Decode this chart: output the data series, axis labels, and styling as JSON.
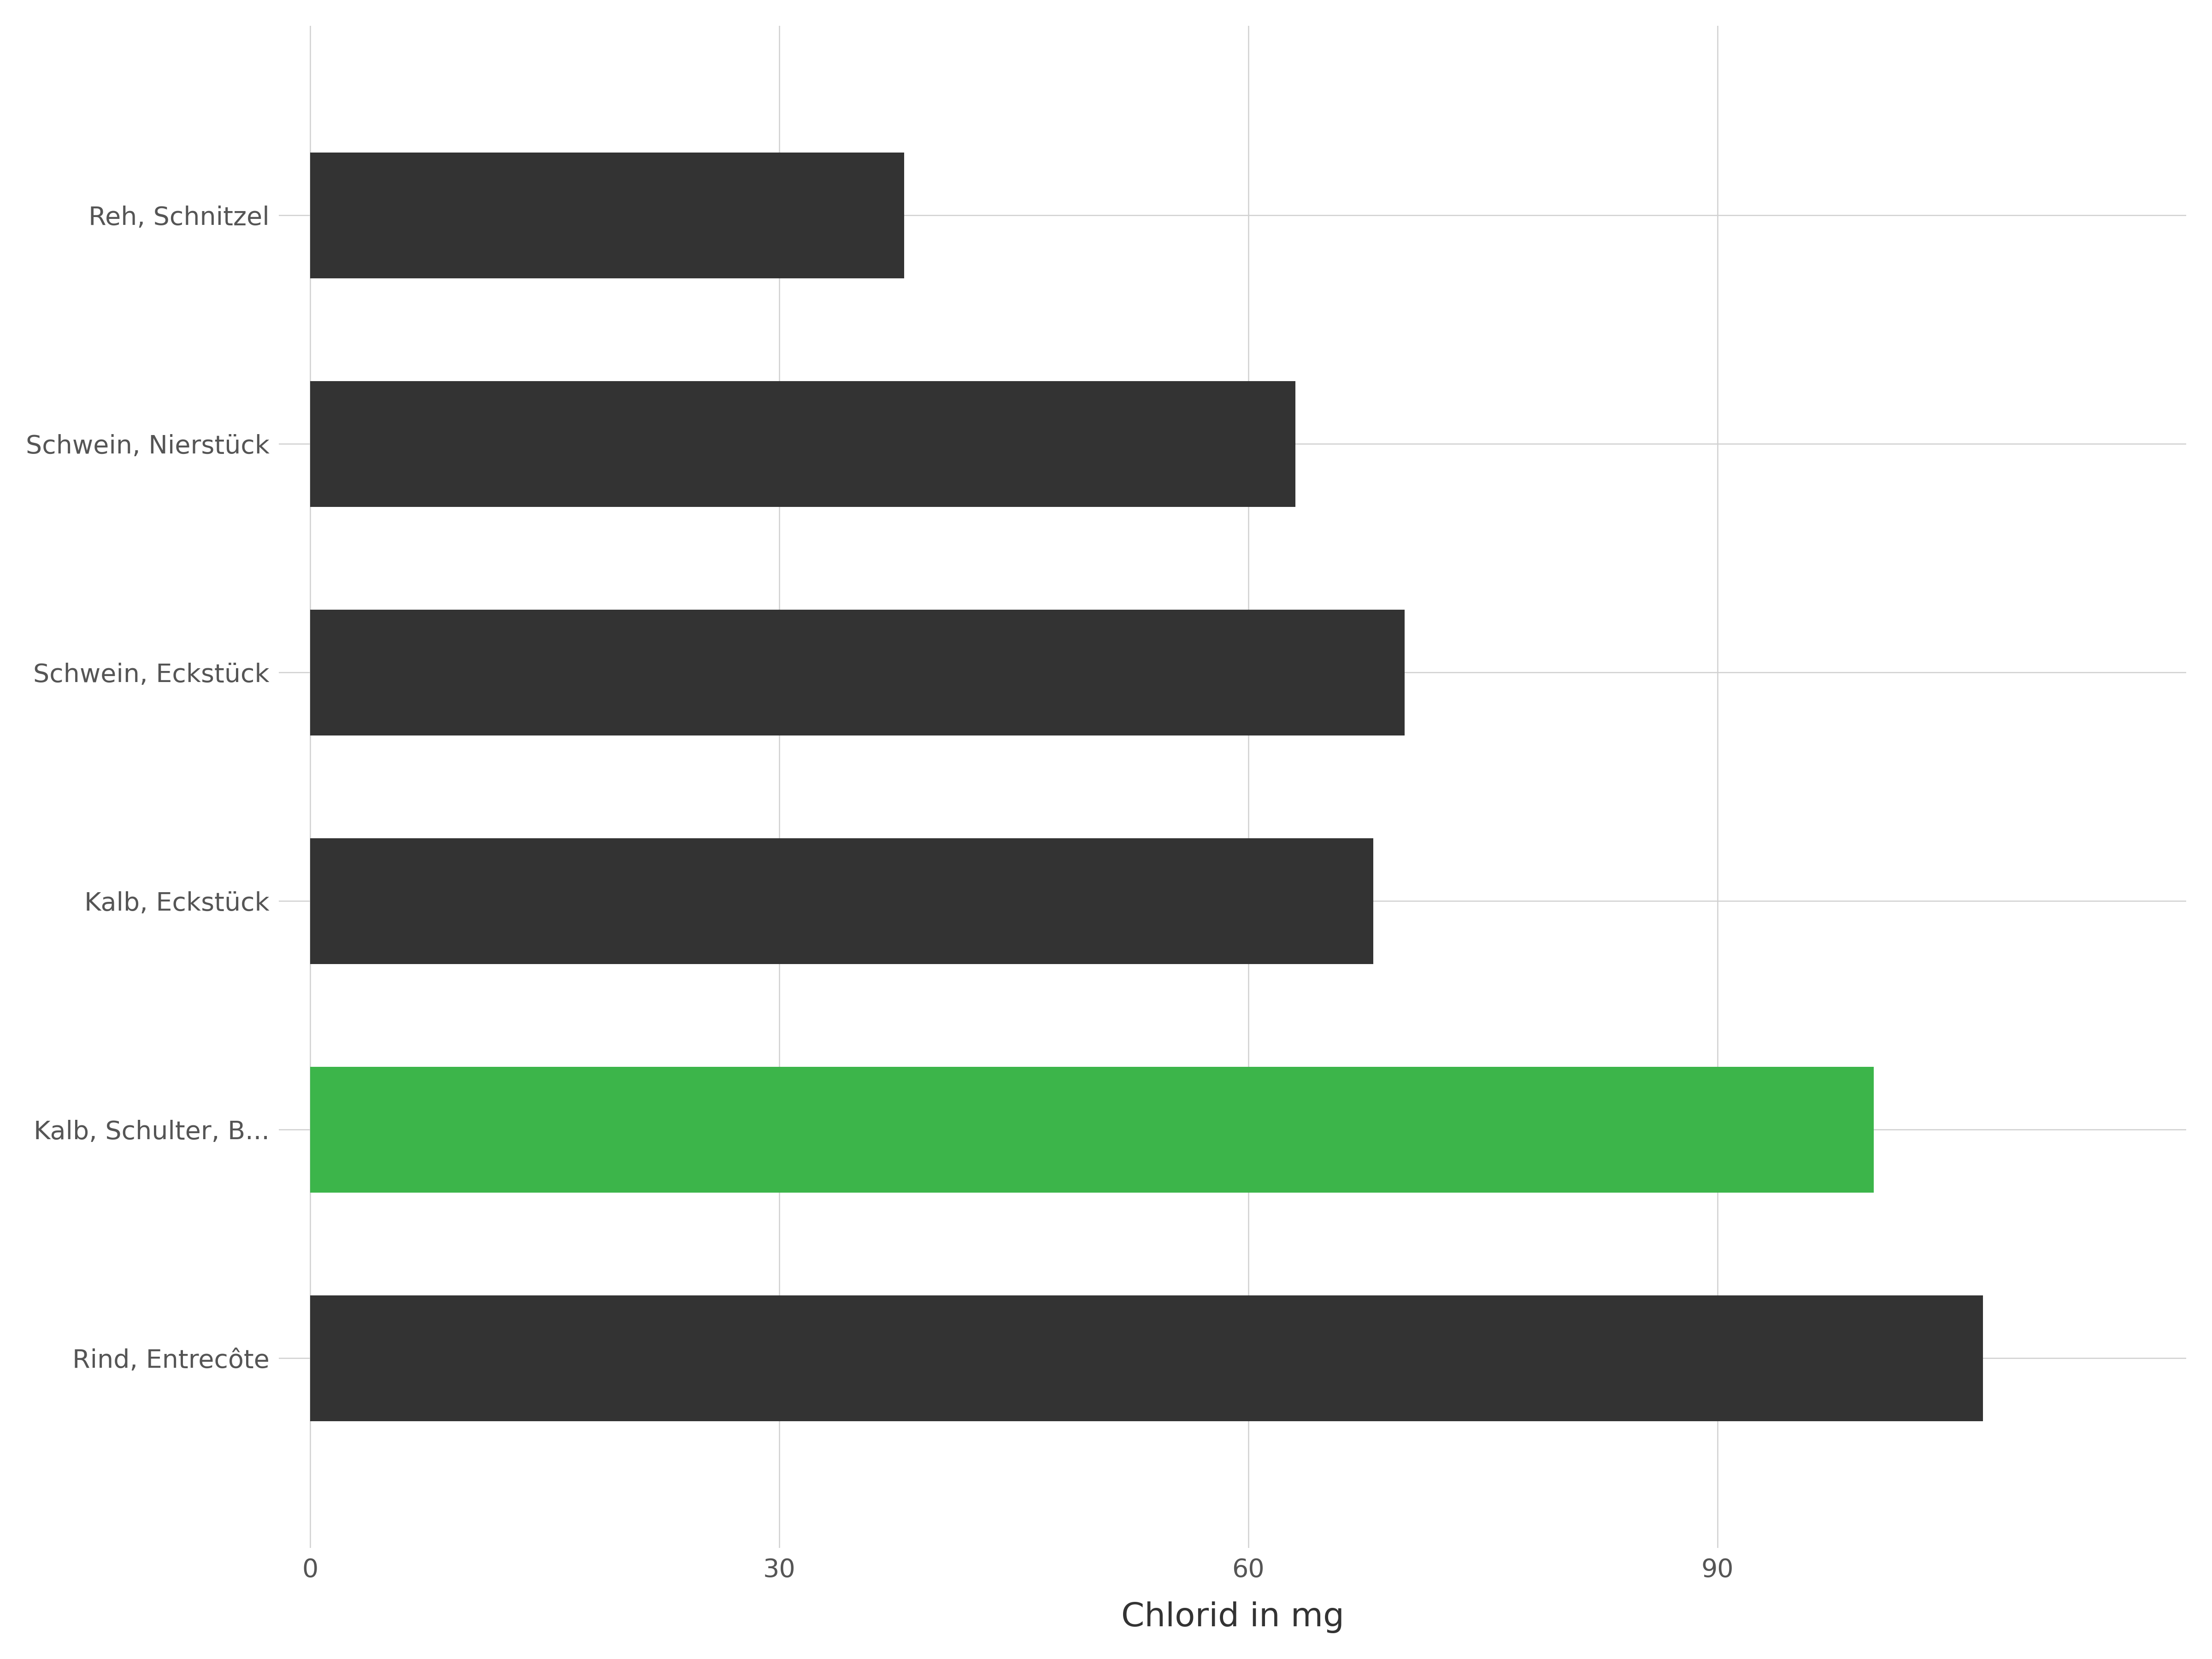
{
  "categories": [
    "Reh, Schnitzel",
    "Schwein, Nierstück",
    "Schwein, Eckstück",
    "Kalb, Eckstück",
    "Kalb, Schulter, B...",
    "Rind, Entrecôte"
  ],
  "values": [
    38,
    63,
    70,
    68,
    100,
    107
  ],
  "bar_colors": [
    "#333333",
    "#333333",
    "#333333",
    "#333333",
    "#3cb54a",
    "#333333"
  ],
  "xlabel": "Chlorid in mg",
  "xlim": [
    -2,
    120
  ],
  "xticks": [
    0,
    30,
    60,
    90
  ],
  "background_color": "#ffffff",
  "grid_color": "#d0d0d0",
  "label_color": "#555555",
  "bar_height": 0.55,
  "xlabel_fontsize": 52,
  "tick_fontsize": 40,
  "ytick_fontsize": 40
}
